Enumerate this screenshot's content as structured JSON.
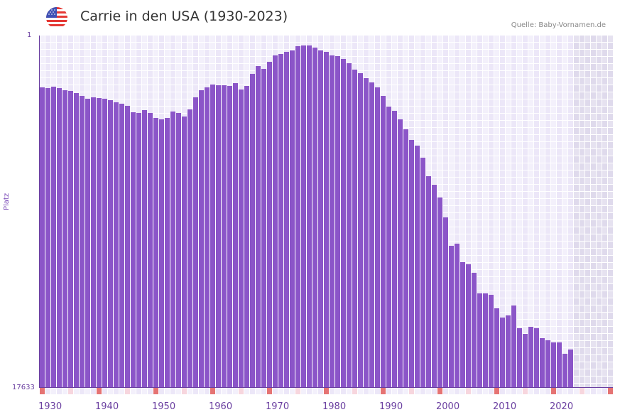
{
  "header": {
    "title": "Carrie in den USA (1930-2023)",
    "source": "Quelle: Baby-Vornamen.de",
    "flag_icon": "us-flag-icon"
  },
  "colors": {
    "bar": "#8b55c8",
    "axis": "#6a3fa0",
    "grid_a": "#f3f0fb",
    "grid_b": "#ece7f8",
    "future_a": "#e6e2f0",
    "future_b": "#dfdaec",
    "decade_marker": "#e57373",
    "half_decade_marker": "#f7d6de"
  },
  "chart_data": {
    "type": "bar",
    "title": "Carrie in den USA (1930-2023)",
    "xlabel": "",
    "ylabel": "Platz",
    "y_axis_inverted": true,
    "ylim": [
      1,
      17633
    ],
    "y_ticks": [
      "1",
      "17633"
    ],
    "xlim": [
      1930,
      2030
    ],
    "x_ticks": [
      "1930",
      "1940",
      "1950",
      "1960",
      "1970",
      "1980",
      "1990",
      "2000",
      "2010",
      "2020"
    ],
    "grid": true,
    "categories": [
      1930,
      1931,
      1932,
      1933,
      1934,
      1935,
      1936,
      1937,
      1938,
      1939,
      1940,
      1941,
      1942,
      1943,
      1944,
      1945,
      1946,
      1947,
      1948,
      1949,
      1950,
      1951,
      1952,
      1953,
      1954,
      1955,
      1956,
      1957,
      1958,
      1959,
      1960,
      1961,
      1962,
      1963,
      1964,
      1965,
      1966,
      1967,
      1968,
      1969,
      1970,
      1971,
      1972,
      1973,
      1974,
      1975,
      1976,
      1977,
      1978,
      1979,
      1980,
      1981,
      1982,
      1983,
      1984,
      1985,
      1986,
      1987,
      1988,
      1989,
      1990,
      1991,
      1992,
      1993,
      1994,
      1995,
      1996,
      1997,
      1998,
      1999,
      2000,
      2001,
      2002,
      2003,
      2004,
      2005,
      2006,
      2007,
      2008,
      2009,
      2010,
      2011,
      2012,
      2013,
      2014,
      2015,
      2016,
      2017,
      2018,
      2019,
      2020,
      2021,
      2022,
      2023
    ],
    "series": [
      {
        "name": "Carrie",
        "values": [
          2600,
          2637,
          2566,
          2637,
          2744,
          2779,
          2886,
          3029,
          3171,
          3100,
          3136,
          3171,
          3242,
          3349,
          3420,
          3527,
          3848,
          3884,
          3741,
          3884,
          4133,
          4204,
          4133,
          3812,
          3884,
          4062,
          3705,
          3100,
          2744,
          2600,
          2459,
          2494,
          2494,
          2530,
          2388,
          2708,
          2530,
          1924,
          1533,
          1675,
          1319,
          998,
          927,
          820,
          749,
          535,
          500,
          500,
          606,
          749,
          820,
          998,
          1034,
          1176,
          1390,
          1711,
          1889,
          2138,
          2352,
          2600,
          3029,
          3563,
          3777,
          4204,
          4703,
          5237,
          5522,
          6128,
          7054,
          7481,
          8122,
          9120,
          10545,
          10438,
          11364,
          11471,
          11898,
          12931,
          12931,
          13002,
          13679,
          14142,
          14035,
          13536,
          14676,
          14961,
          14605,
          14676,
          15175,
          15282,
          15389,
          15389,
          15959,
          15745
        ]
      }
    ]
  }
}
